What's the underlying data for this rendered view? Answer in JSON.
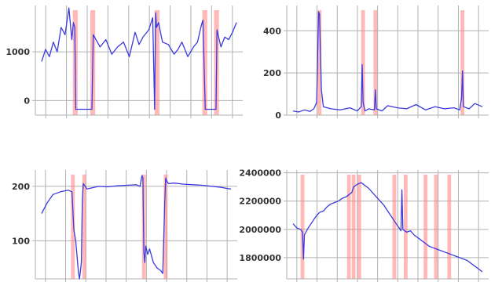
{
  "figure": {
    "grid_color": "#b0b0b0",
    "axis_color": "#b0b0b0",
    "line_color": "#3a3ae0",
    "band_color": "#ff8080"
  },
  "chart_data": [
    {
      "type": "line",
      "ylim": [
        -300,
        1950
      ],
      "yticks": [
        0,
        1000
      ],
      "ytick_labels": [
        "0",
        "1000"
      ],
      "x_grid_count": 10,
      "grid": true,
      "shaded_regions": [
        [
          0.16,
          0.185
        ],
        [
          0.25,
          0.275
        ],
        [
          0.58,
          0.605
        ],
        [
          0.825,
          0.85
        ],
        [
          0.885,
          0.91
        ]
      ],
      "series": [
        {
          "x": [
            0,
            0.02,
            0.04,
            0.06,
            0.08,
            0.1,
            0.12,
            0.14,
            0.155,
            0.163,
            0.17,
            0.175,
            0.258,
            0.265,
            0.3,
            0.33,
            0.36,
            0.39,
            0.42,
            0.45,
            0.48,
            0.5,
            0.52,
            0.55,
            0.57,
            0.58,
            0.585,
            0.59,
            0.6,
            0.62,
            0.65,
            0.68,
            0.7,
            0.72,
            0.75,
            0.78,
            0.8,
            0.82,
            0.828,
            0.84,
            0.895,
            0.9,
            0.92,
            0.94,
            0.96,
            0.98,
            1.0
          ],
          "values": [
            800,
            1050,
            900,
            1200,
            1000,
            1500,
            1350,
            1900,
            1250,
            1600,
            1500,
            -180,
            -180,
            1350,
            1100,
            1250,
            950,
            1100,
            1200,
            900,
            1400,
            1150,
            1300,
            1450,
            1700,
            -180,
            1800,
            1500,
            1600,
            1200,
            1150,
            950,
            1050,
            1200,
            900,
            1100,
            1200,
            1550,
            1650,
            -180,
            -180,
            1450,
            1100,
            1300,
            1250,
            1400,
            1600
          ]
        }
      ]
    },
    {
      "type": "line",
      "ylim": [
        0,
        520
      ],
      "yticks": [
        0,
        200,
        400
      ],
      "ytick_labels": [
        "0",
        "200",
        "400"
      ],
      "x_grid_count": 10,
      "grid": true,
      "shaded_regions": [
        [
          0.13,
          0.15
        ],
        [
          0.36,
          0.38
        ],
        [
          0.425,
          0.445
        ],
        [
          0.885,
          0.905
        ]
      ],
      "series": [
        {
          "x": [
            0,
            0.03,
            0.06,
            0.09,
            0.11,
            0.125,
            0.135,
            0.14,
            0.15,
            0.16,
            0.2,
            0.25,
            0.3,
            0.34,
            0.36,
            0.365,
            0.37,
            0.38,
            0.4,
            0.43,
            0.435,
            0.44,
            0.47,
            0.5,
            0.55,
            0.6,
            0.65,
            0.7,
            0.75,
            0.8,
            0.85,
            0.88,
            0.89,
            0.895,
            0.9,
            0.93,
            0.96,
            1.0
          ],
          "values": [
            20,
            15,
            25,
            18,
            30,
            60,
            490,
            480,
            120,
            40,
            30,
            25,
            35,
            20,
            40,
            240,
            60,
            20,
            30,
            25,
            120,
            30,
            20,
            45,
            35,
            30,
            50,
            25,
            40,
            30,
            35,
            25,
            80,
            210,
            40,
            30,
            55,
            40
          ]
        }
      ]
    },
    {
      "type": "line",
      "ylim": [
        30,
        230
      ],
      "yticks": [
        100,
        200
      ],
      "ytick_labels": [
        "100",
        "200"
      ],
      "x_grid_count": 10,
      "grid": true,
      "shaded_regions": [
        [
          0.155,
          0.175
        ],
        [
          0.215,
          0.235
        ],
        [
          0.53,
          0.55
        ],
        [
          0.645,
          0.665
        ]
      ],
      "series": [
        {
          "x": [
            0,
            0.03,
            0.06,
            0.1,
            0.14,
            0.16,
            0.17,
            0.18,
            0.195,
            0.2,
            0.21,
            0.215,
            0.22,
            0.24,
            0.3,
            0.35,
            0.4,
            0.45,
            0.5,
            0.52,
            0.53,
            0.535,
            0.54,
            0.545,
            0.55,
            0.56,
            0.57,
            0.59,
            0.61,
            0.63,
            0.64,
            0.65,
            0.655,
            0.66,
            0.67,
            0.7,
            0.75,
            0.8,
            0.85,
            0.9,
            0.95,
            0.98,
            1.0
          ],
          "values": [
            150,
            170,
            185,
            190,
            193,
            190,
            120,
            100,
            40,
            30,
            60,
            175,
            205,
            195,
            200,
            199,
            201,
            202,
            203,
            200,
            220,
            215,
            80,
            60,
            90,
            75,
            85,
            60,
            50,
            45,
            40,
            170,
            215,
            210,
            205,
            206,
            204,
            203,
            202,
            200,
            198,
            196,
            195
          ]
        }
      ]
    },
    {
      "type": "line",
      "ylim": [
        1650000,
        2420000
      ],
      "yticks": [
        1800000,
        2000000,
        2200000,
        2400000
      ],
      "ytick_labels": [
        "1800000",
        "2000000",
        "2200000",
        "2400000"
      ],
      "x_grid_count": 10,
      "grid": true,
      "shaded_regions": [
        [
          0.04,
          0.06
        ],
        [
          0.285,
          0.305
        ],
        [
          0.31,
          0.33
        ],
        [
          0.34,
          0.36
        ],
        [
          0.525,
          0.545
        ],
        [
          0.585,
          0.605
        ],
        [
          0.69,
          0.71
        ],
        [
          0.745,
          0.765
        ],
        [
          0.815,
          0.835
        ]
      ],
      "series": [
        {
          "x": [
            0,
            0.02,
            0.04,
            0.05,
            0.055,
            0.06,
            0.08,
            0.1,
            0.12,
            0.14,
            0.16,
            0.18,
            0.2,
            0.22,
            0.24,
            0.26,
            0.28,
            0.3,
            0.31,
            0.32,
            0.34,
            0.36,
            0.38,
            0.4,
            0.42,
            0.44,
            0.46,
            0.48,
            0.5,
            0.52,
            0.54,
            0.56,
            0.57,
            0.575,
            0.58,
            0.6,
            0.62,
            0.64,
            0.66,
            0.68,
            0.7,
            0.72,
            0.74,
            0.76,
            0.78,
            0.8,
            0.82,
            0.84,
            0.86,
            0.88,
            0.9,
            0.92,
            0.94,
            0.96,
            0.98,
            1.0
          ],
          "values": [
            2040000,
            2010000,
            2000000,
            1980000,
            1790000,
            1960000,
            2010000,
            2050000,
            2090000,
            2120000,
            2130000,
            2160000,
            2180000,
            2190000,
            2200000,
            2220000,
            2230000,
            2250000,
            2260000,
            2300000,
            2320000,
            2330000,
            2310000,
            2290000,
            2260000,
            2230000,
            2200000,
            2170000,
            2130000,
            2090000,
            2050000,
            2010000,
            1990000,
            2280000,
            2000000,
            1980000,
            1990000,
            1960000,
            1940000,
            1920000,
            1900000,
            1880000,
            1870000,
            1860000,
            1850000,
            1840000,
            1830000,
            1820000,
            1810000,
            1800000,
            1790000,
            1780000,
            1760000,
            1740000,
            1720000,
            1700000
          ]
        }
      ]
    }
  ]
}
